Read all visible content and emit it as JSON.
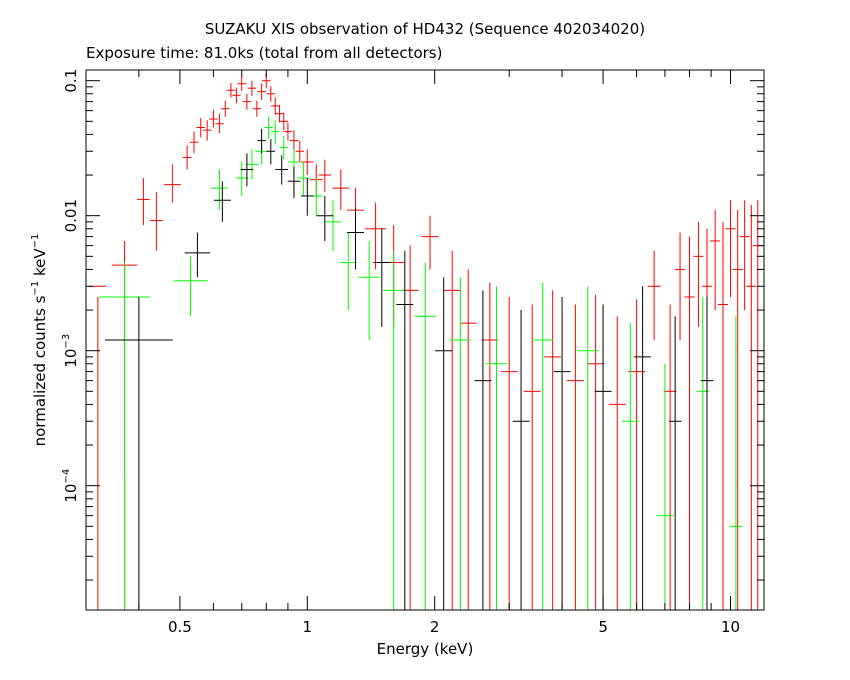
{
  "chart_data": {
    "type": "scatter",
    "title": "SUZAKU XIS observation of HD432 (Sequence 402034020)",
    "subtitle": "Exposure time: 81.0ks (total from all detectors)",
    "xlabel": "Energy (keV)",
    "ylabel_parts": {
      "prefix": "normalized counts s",
      "s_exp": "−1",
      "middle": " keV",
      "kev_exp": "−1"
    },
    "xscale": "log",
    "yscale": "log",
    "xlim": [
      0.3,
      12
    ],
    "ylim": [
      1.2e-05,
      0.12
    ],
    "x_ticks": [
      {
        "value": 0.5,
        "label": "0.5"
      },
      {
        "value": 1,
        "label": "1"
      },
      {
        "value": 2,
        "label": "2"
      },
      {
        "value": 5,
        "label": "5"
      },
      {
        "value": 10,
        "label": "10"
      }
    ],
    "y_ticks": [
      {
        "value": 0.1,
        "label": "0.1",
        "sup": ""
      },
      {
        "value": 0.01,
        "label": "0.01",
        "sup": ""
      },
      {
        "value": 0.001,
        "label": "10",
        "sup": "−3"
      },
      {
        "value": 0.0001,
        "label": "10",
        "sup": "−4"
      }
    ],
    "grid": false,
    "legend": "none",
    "series": [
      {
        "color": "#ff0000",
        "points": [
          [
            0.32,
            0.003,
            0.02,
            0.0,
            0.0025
          ],
          [
            0.37,
            0.0043,
            0.03,
            0.00012,
            0.0065
          ],
          [
            0.41,
            0.0132,
            0.015,
            0.0085,
            0.019
          ],
          [
            0.44,
            0.0092,
            0.015,
            0.0055,
            0.015
          ],
          [
            0.48,
            0.017,
            0.02,
            0.0125,
            0.024
          ],
          [
            0.52,
            0.027,
            0.01,
            0.022,
            0.033
          ],
          [
            0.54,
            0.035,
            0.01,
            0.029,
            0.042
          ],
          [
            0.56,
            0.045,
            0.01,
            0.038,
            0.053
          ],
          [
            0.58,
            0.043,
            0.01,
            0.036,
            0.051
          ],
          [
            0.6,
            0.052,
            0.01,
            0.045,
            0.061
          ],
          [
            0.62,
            0.048,
            0.01,
            0.041,
            0.057
          ],
          [
            0.64,
            0.062,
            0.01,
            0.054,
            0.071
          ],
          [
            0.66,
            0.085,
            0.01,
            0.075,
            0.096
          ],
          [
            0.68,
            0.078,
            0.01,
            0.068,
            0.089
          ],
          [
            0.7,
            0.095,
            0.01,
            0.084,
            0.107
          ],
          [
            0.72,
            0.07,
            0.01,
            0.061,
            0.08
          ],
          [
            0.74,
            0.088,
            0.01,
            0.077,
            0.1
          ],
          [
            0.76,
            0.062,
            0.01,
            0.054,
            0.071
          ],
          [
            0.78,
            0.083,
            0.01,
            0.072,
            0.095
          ],
          [
            0.8,
            0.1,
            0.01,
            0.088,
            0.114
          ],
          [
            0.82,
            0.08,
            0.01,
            0.07,
            0.091
          ],
          [
            0.84,
            0.065,
            0.01,
            0.056,
            0.075
          ],
          [
            0.86,
            0.057,
            0.01,
            0.049,
            0.066
          ],
          [
            0.88,
            0.05,
            0.01,
            0.043,
            0.058
          ],
          [
            0.9,
            0.042,
            0.01,
            0.036,
            0.049
          ],
          [
            0.93,
            0.036,
            0.01,
            0.03,
            0.043
          ],
          [
            0.96,
            0.03,
            0.01,
            0.025,
            0.036
          ],
          [
            1.0,
            0.025,
            0.015,
            0.02,
            0.031
          ],
          [
            1.05,
            0.0185,
            0.015,
            0.014,
            0.024
          ],
          [
            1.1,
            0.02,
            0.015,
            0.015,
            0.026
          ],
          [
            1.2,
            0.016,
            0.02,
            0.011,
            0.022
          ],
          [
            1.3,
            0.011,
            0.02,
            0.0065,
            0.016
          ],
          [
            1.45,
            0.008,
            0.025,
            0.004,
            0.0125
          ],
          [
            1.6,
            0.0045,
            0.025,
            0.0015,
            0.0085
          ],
          [
            1.75,
            0.0028,
            0.02,
            0.0,
            0.006
          ],
          [
            1.95,
            0.007,
            0.02,
            0.004,
            0.01
          ],
          [
            2.2,
            0.0028,
            0.02,
            0.0,
            0.0055
          ],
          [
            2.4,
            0.0016,
            0.02,
            0.0,
            0.004
          ],
          [
            2.7,
            0.0012,
            0.02,
            0.0,
            0.0032
          ],
          [
            3.0,
            0.0007,
            0.02,
            0.0,
            0.0025
          ],
          [
            3.4,
            0.0005,
            0.02,
            0.0,
            0.0022
          ],
          [
            3.8,
            0.0009,
            0.02,
            0.0,
            0.0028
          ],
          [
            4.3,
            0.0006,
            0.02,
            0.0,
            0.0022
          ],
          [
            4.8,
            0.0008,
            0.02,
            0.0,
            0.0026
          ],
          [
            5.4,
            0.0004,
            0.02,
            0.0,
            0.0018
          ],
          [
            6.0,
            0.0007,
            0.02,
            0.0,
            0.0024
          ],
          [
            6.6,
            0.003,
            0.015,
            0.0012,
            0.0055
          ],
          [
            7.2,
            0.0005,
            0.015,
            0.0,
            0.0022
          ],
          [
            7.6,
            0.004,
            0.012,
            0.0012,
            0.0075
          ],
          [
            8.0,
            0.0025,
            0.012,
            0.0,
            0.007
          ],
          [
            8.4,
            0.005,
            0.012,
            0.0015,
            0.009
          ],
          [
            8.8,
            0.003,
            0.012,
            0.0,
            0.008
          ],
          [
            9.2,
            0.0065,
            0.012,
            0.002,
            0.011
          ],
          [
            9.6,
            0.0022,
            0.012,
            0.0,
            0.009
          ],
          [
            10.0,
            0.008,
            0.012,
            0.0025,
            0.013
          ],
          [
            10.4,
            0.004,
            0.012,
            0.0,
            0.011
          ],
          [
            10.8,
            0.007,
            0.012,
            0.002,
            0.013
          ],
          [
            11.2,
            0.003,
            0.012,
            0.0,
            0.012
          ],
          [
            11.6,
            0.006,
            0.012,
            0.0,
            0.013
          ]
        ]
      },
      {
        "color": "#00ff00",
        "points": [
          [
            0.37,
            0.0025,
            0.06,
            0.0,
            0.0045
          ],
          [
            0.53,
            0.0033,
            0.04,
            0.0018,
            0.005
          ],
          [
            0.62,
            0.016,
            0.02,
            0.011,
            0.022
          ],
          [
            0.7,
            0.019,
            0.015,
            0.014,
            0.025
          ],
          [
            0.74,
            0.024,
            0.015,
            0.0185,
            0.031
          ],
          [
            0.78,
            0.03,
            0.015,
            0.024,
            0.037
          ],
          [
            0.81,
            0.045,
            0.01,
            0.037,
            0.054
          ],
          [
            0.84,
            0.042,
            0.01,
            0.034,
            0.051
          ],
          [
            0.88,
            0.032,
            0.01,
            0.026,
            0.039
          ],
          [
            0.93,
            0.025,
            0.015,
            0.019,
            0.031
          ],
          [
            0.98,
            0.019,
            0.015,
            0.014,
            0.025
          ],
          [
            1.05,
            0.014,
            0.015,
            0.01,
            0.019
          ],
          [
            1.15,
            0.009,
            0.02,
            0.0055,
            0.013
          ],
          [
            1.25,
            0.0045,
            0.02,
            0.002,
            0.0075
          ],
          [
            1.4,
            0.0035,
            0.025,
            0.0012,
            0.0065
          ],
          [
            1.6,
            0.0028,
            0.025,
            0.0,
            0.0055
          ],
          [
            1.9,
            0.0018,
            0.025,
            0.0,
            0.0045
          ],
          [
            2.3,
            0.0012,
            0.025,
            0.0,
            0.0035
          ],
          [
            2.8,
            0.0008,
            0.025,
            0.0,
            0.003
          ],
          [
            3.6,
            0.0012,
            0.025,
            0.0,
            0.0032
          ],
          [
            4.6,
            0.001,
            0.025,
            0.0,
            0.003
          ],
          [
            5.8,
            0.0003,
            0.02,
            0.0,
            0.0016
          ],
          [
            7.0,
            6e-05,
            0.02,
            0.0,
            0.0008
          ],
          [
            8.6,
            0.0005,
            0.015,
            0.0,
            0.0025
          ],
          [
            10.3,
            5e-05,
            0.015,
            0.0,
            0.0018
          ]
        ]
      },
      {
        "color": "#000000",
        "points": [
          [
            0.4,
            0.0012,
            0.08,
            6e-06,
            0.0025
          ],
          [
            0.55,
            0.0053,
            0.03,
            0.0035,
            0.0075
          ],
          [
            0.63,
            0.013,
            0.02,
            0.009,
            0.018
          ],
          [
            0.72,
            0.022,
            0.015,
            0.0165,
            0.029
          ],
          [
            0.78,
            0.036,
            0.01,
            0.029,
            0.044
          ],
          [
            0.82,
            0.03,
            0.01,
            0.024,
            0.037
          ],
          [
            0.87,
            0.022,
            0.015,
            0.017,
            0.028
          ],
          [
            0.93,
            0.018,
            0.015,
            0.0135,
            0.023
          ],
          [
            1.0,
            0.014,
            0.015,
            0.01,
            0.019
          ],
          [
            1.1,
            0.01,
            0.02,
            0.0065,
            0.014
          ],
          [
            1.3,
            0.0075,
            0.02,
            0.004,
            0.0115
          ],
          [
            1.5,
            0.0045,
            0.02,
            0.0015,
            0.008
          ],
          [
            1.7,
            0.0022,
            0.02,
            0.0,
            0.0055
          ],
          [
            2.1,
            0.001,
            0.02,
            0.0,
            0.0035
          ],
          [
            2.6,
            0.0006,
            0.02,
            0.0,
            0.0028
          ],
          [
            3.2,
            0.0003,
            0.02,
            0.0,
            0.002
          ],
          [
            4.0,
            0.0007,
            0.02,
            0.0,
            0.0025
          ],
          [
            5.0,
            0.0005,
            0.02,
            0.0,
            0.0022
          ],
          [
            6.2,
            0.0009,
            0.02,
            0.0,
            0.003
          ],
          [
            7.4,
            0.0003,
            0.015,
            0.0,
            0.0018
          ],
          [
            8.8,
            0.0006,
            0.015,
            0.0,
            0.0025
          ]
        ]
      }
    ]
  }
}
